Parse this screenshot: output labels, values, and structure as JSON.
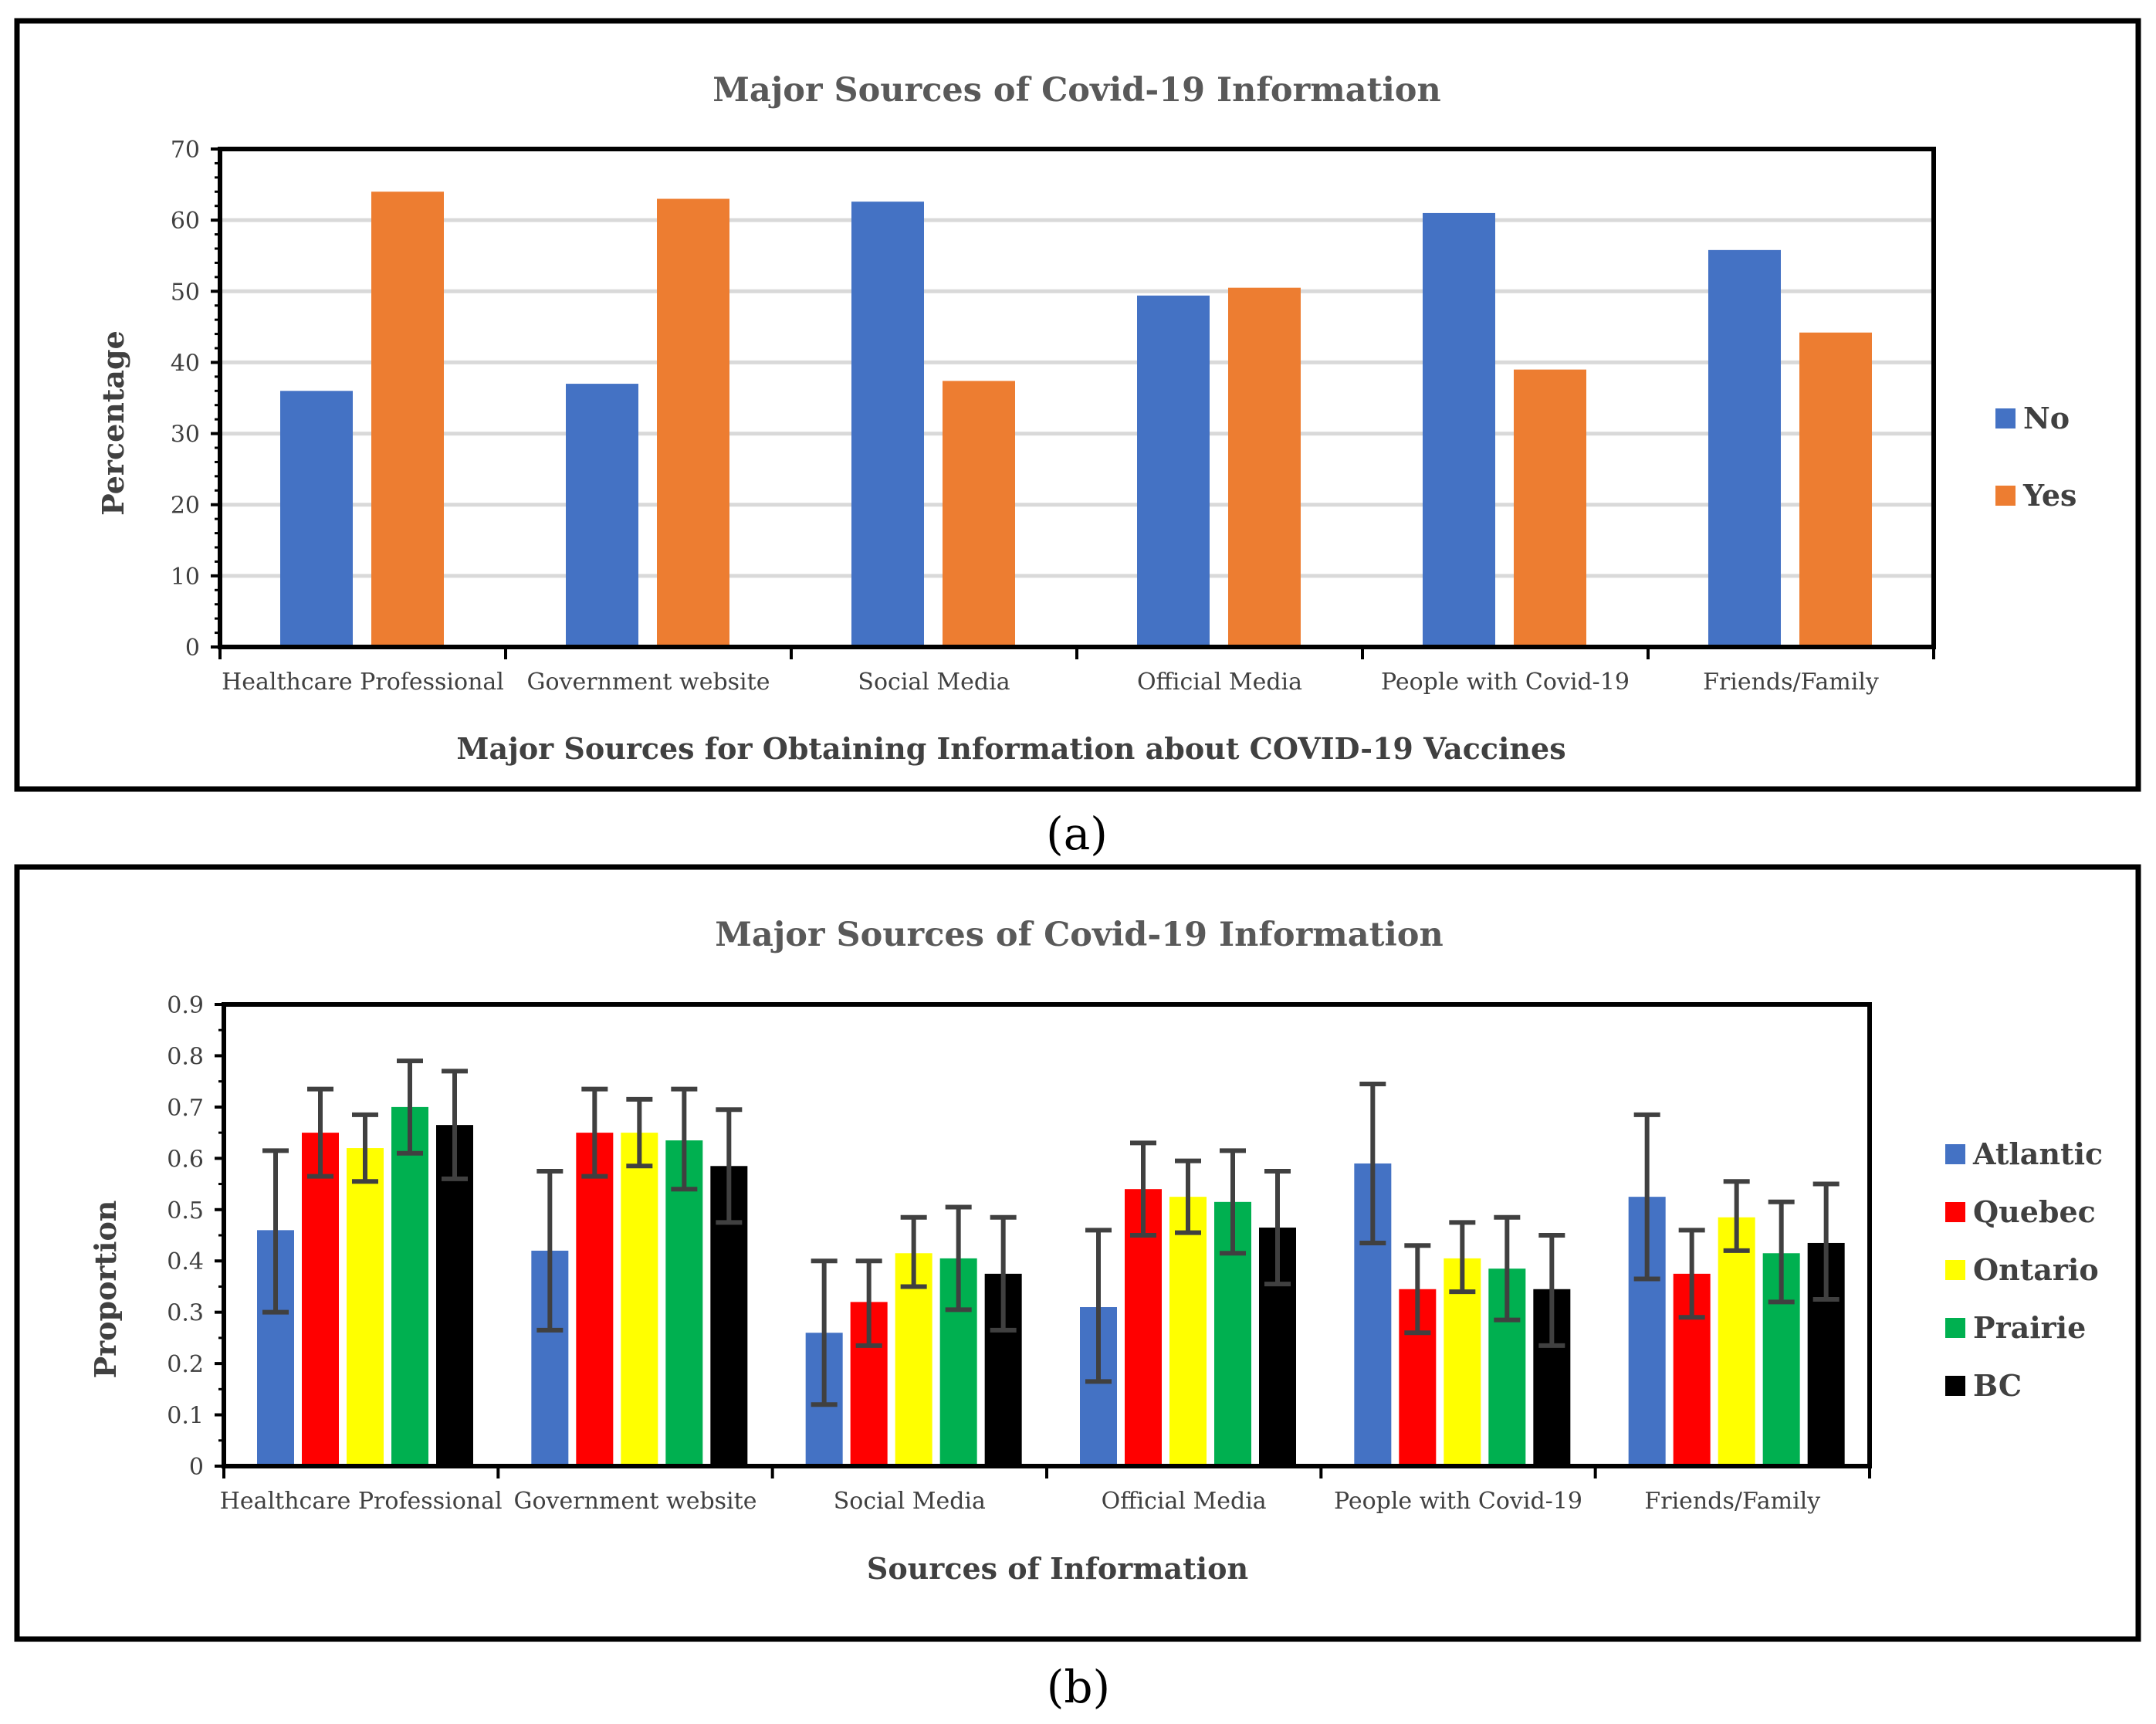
{
  "chart_data": [
    {
      "panel": "a",
      "type": "bar",
      "title": "Major Sources of Covid-19 Information",
      "xlabel": "Major Sources for Obtaining Information about COVID-19 Vaccines",
      "ylabel": "Percentage",
      "ylim": [
        0,
        70
      ],
      "yticks": [
        "0",
        "10",
        "20",
        "30",
        "40",
        "50",
        "60",
        "70"
      ],
      "grid": true,
      "legend_position": "right",
      "categories": [
        "Healthcare Professional",
        "Government website",
        "Social Media",
        "Official Media",
        "People with Covid-19",
        "Friends/Family"
      ],
      "series": [
        {
          "name": "No",
          "color": "#4472C4",
          "values": [
            36,
            37,
            62.6,
            49.4,
            61,
            55.8
          ]
        },
        {
          "name": "Yes",
          "color": "#ED7D31",
          "values": [
            64,
            63,
            37.4,
            50.5,
            39,
            44.2
          ]
        }
      ]
    },
    {
      "panel": "b",
      "type": "bar",
      "title": "Major Sources of Covid-19 Information",
      "xlabel": "Sources of Information",
      "ylabel": "Proportion",
      "ylim": [
        0,
        0.9
      ],
      "yticks": [
        "0",
        "0.1",
        "0.2",
        "0.3",
        "0.4",
        "0.5",
        "0.6",
        "0.7",
        "0.8",
        "0.9"
      ],
      "grid": false,
      "legend_position": "right",
      "categories": [
        "Healthcare Professional",
        "Government website",
        "Social Media",
        "Official Media",
        "People with Covid-19",
        "Friends/Family"
      ],
      "series": [
        {
          "name": "Atlantic",
          "color": "#4472C4",
          "values": [
            0.46,
            0.42,
            0.26,
            0.31,
            0.59,
            0.525
          ],
          "error_low": [
            0.3,
            0.265,
            0.12,
            0.165,
            0.435,
            0.365
          ],
          "error_high": [
            0.615,
            0.575,
            0.4,
            0.46,
            0.745,
            0.685
          ]
        },
        {
          "name": "Quebec",
          "color": "#FF0000",
          "values": [
            0.65,
            0.65,
            0.32,
            0.54,
            0.345,
            0.375
          ],
          "error_low": [
            0.565,
            0.565,
            0.235,
            0.45,
            0.26,
            0.29
          ],
          "error_high": [
            0.735,
            0.735,
            0.4,
            0.63,
            0.43,
            0.46
          ]
        },
        {
          "name": "Ontario",
          "color": "#FFFF00",
          "values": [
            0.62,
            0.65,
            0.415,
            0.525,
            0.405,
            0.485
          ],
          "error_low": [
            0.555,
            0.585,
            0.35,
            0.455,
            0.34,
            0.42
          ],
          "error_high": [
            0.685,
            0.715,
            0.485,
            0.595,
            0.475,
            0.555
          ]
        },
        {
          "name": "Prairie",
          "color": "#00B050",
          "values": [
            0.7,
            0.635,
            0.405,
            0.515,
            0.385,
            0.415
          ],
          "error_low": [
            0.61,
            0.54,
            0.305,
            0.415,
            0.285,
            0.32
          ],
          "error_high": [
            0.79,
            0.735,
            0.505,
            0.615,
            0.485,
            0.515
          ]
        },
        {
          "name": "BC",
          "color": "#000000",
          "values": [
            0.665,
            0.585,
            0.375,
            0.465,
            0.345,
            0.435
          ],
          "error_low": [
            0.56,
            0.475,
            0.265,
            0.355,
            0.235,
            0.325
          ],
          "error_high": [
            0.77,
            0.695,
            0.485,
            0.575,
            0.45,
            0.55
          ]
        }
      ]
    }
  ],
  "panel_labels": [
    "(a)",
    "(b)"
  ]
}
